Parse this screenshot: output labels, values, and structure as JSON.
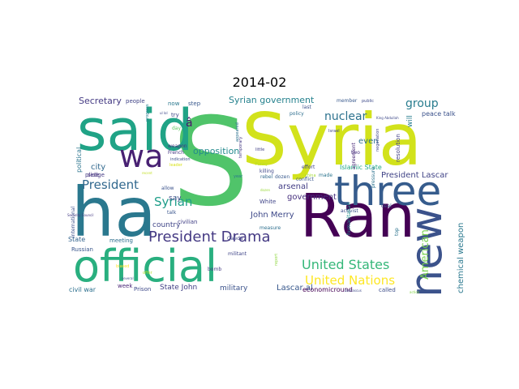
{
  "figure": {
    "title": "2014-02"
  },
  "cloud": {
    "words": [
      {
        "text": "S",
        "color": "#50c46a"
      },
      {
        "text": "Syria",
        "color": "#d2e21b"
      },
      {
        "text": "ha",
        "color": "#2a788e"
      },
      {
        "text": "Ran",
        "color": "#440154"
      },
      {
        "text": "said",
        "color": "#20a386"
      },
      {
        "text": "official",
        "color": "#29af7f"
      },
      {
        "text": "three",
        "color": "#365c8d"
      },
      {
        "text": "new",
        "color": "#3b528b"
      },
      {
        "text": "wa",
        "color": "#482173"
      },
      {
        "text": "President Drama",
        "color": "#443983"
      },
      {
        "text": "United States",
        "color": "#35b779"
      },
      {
        "text": "United Nations",
        "color": "#fde725"
      },
      {
        "text": "President",
        "color": "#31688e"
      },
      {
        "text": "Syrian",
        "color": "#1f9e89"
      },
      {
        "text": "American",
        "color": "#7ad151"
      },
      {
        "text": "group",
        "color": "#287c8e"
      },
      {
        "text": "nuclear",
        "color": "#2c728e"
      },
      {
        "text": "Syrian government",
        "color": "#26828e"
      },
      {
        "text": "Secretary",
        "color": "#443a83"
      },
      {
        "text": "opposition",
        "color": "#238a8d"
      },
      {
        "text": "President Lascar",
        "color": "#414487"
      },
      {
        "text": "chemical weapon",
        "color": "#2a788e"
      },
      {
        "text": "government",
        "color": "#46307e"
      },
      {
        "text": "John Merry",
        "color": "#3e4989"
      },
      {
        "text": "arsenal",
        "color": "#433e85"
      },
      {
        "text": "even",
        "color": "#2d708e"
      },
      {
        "text": "Lascar al",
        "color": "#38588c"
      },
      {
        "text": "State John",
        "color": "#424086"
      },
      {
        "text": "military",
        "color": "#3b528b"
      },
      {
        "text": "country",
        "color": "#404688"
      },
      {
        "text": "city",
        "color": "#31688e"
      },
      {
        "text": "say",
        "color": "#3e4a89"
      },
      {
        "text": "peace talk",
        "color": "#3b528b"
      },
      {
        "text": "â",
        "color": "#48186a"
      },
      {
        "text": "will",
        "color": "#287d8e"
      },
      {
        "text": "Islamic State",
        "color": "#22a884"
      },
      {
        "text": "resolution",
        "color": "#424086"
      },
      {
        "text": "economicround",
        "color": "#440154"
      },
      {
        "text": "called",
        "color": "#3d4d8a"
      },
      {
        "text": "civil war",
        "color": "#2d708e"
      },
      {
        "text": "week",
        "color": "#482475"
      },
      {
        "text": "Prison",
        "color": "#3e4989"
      },
      {
        "text": "State",
        "color": "#33638d"
      },
      {
        "text": "meeting",
        "color": "#2e6e8e"
      },
      {
        "text": "Russian",
        "color": "#39568c"
      },
      {
        "text": "people",
        "color": "#414487"
      },
      {
        "text": "step",
        "color": "#38588c"
      },
      {
        "text": "now",
        "color": "#2a788e"
      },
      {
        "text": "try",
        "color": "#3f4788"
      },
      {
        "text": "day",
        "color": "#5ec962"
      },
      {
        "text": "weapon",
        "color": "#46337f"
      },
      {
        "text": "French",
        "color": "#453581"
      },
      {
        "text": "political",
        "color": "#2b758e"
      },
      {
        "text": "pledge",
        "color": "#443983"
      },
      {
        "text": "side",
        "color": "#46327e"
      },
      {
        "text": "international",
        "color": "#3c508b"
      },
      {
        "text": "talk",
        "color": "#39558c"
      },
      {
        "text": "civilian",
        "color": "#424086"
      },
      {
        "text": "allow",
        "color": "#3b528b"
      },
      {
        "text": "White",
        "color": "#404588"
      },
      {
        "text": "measure",
        "color": "#2e6f8e"
      },
      {
        "text": "killing",
        "color": "#3f4889"
      },
      {
        "text": "rebel",
        "color": "#31688e"
      },
      {
        "text": "dozen",
        "color": "#38598c"
      },
      {
        "text": "effort",
        "color": "#404588"
      },
      {
        "text": "made",
        "color": "#2b748e"
      },
      {
        "text": "two",
        "color": "#46307e"
      },
      {
        "text": "agreement",
        "color": "#482878"
      },
      {
        "text": "pressure",
        "color": "#2c728e"
      },
      {
        "text": "deal",
        "color": "#3c4f8a"
      },
      {
        "text": "activist",
        "color": "#3d4e8a"
      },
      {
        "text": "conflict",
        "color": "#39568c"
      },
      {
        "text": "china",
        "color": "#a5db36"
      },
      {
        "text": "humanitarian",
        "color": "#21918c"
      },
      {
        "text": "top",
        "color": "#2c738e"
      },
      {
        "text": "Qaeda",
        "color": "#414487"
      },
      {
        "text": "militant",
        "color": "#404588"
      },
      {
        "text": "bomb",
        "color": "#443a83"
      },
      {
        "text": "member",
        "color": "#38598c"
      },
      {
        "text": "public",
        "color": "#3e4a89"
      },
      {
        "text": "last",
        "color": "#3b528b"
      },
      {
        "text": "policy",
        "color": "#2e6e8e"
      },
      {
        "text": "Israel",
        "color": "#3f4788"
      },
      {
        "text": "negotiation",
        "color": "#404688"
      },
      {
        "text": "appeared",
        "color": "#2c718e"
      },
      {
        "text": "temporary",
        "color": "#443983"
      },
      {
        "text": "little",
        "color": "#424086"
      },
      {
        "text": "year",
        "color": "#2a788e"
      },
      {
        "text": "Funny",
        "color": "#b8de29"
      },
      {
        "text": "leader",
        "color": "#d8e219"
      },
      {
        "text": "indication",
        "color": "#3d4e8a"
      },
      {
        "text": "progress",
        "color": "#277f8e"
      },
      {
        "text": "ul lol",
        "color": "#3f4889"
      },
      {
        "text": "King Abdullah",
        "color": "#3e4989"
      },
      {
        "text": "Security Council",
        "color": "#443a83"
      },
      {
        "text": "report",
        "color": "#90d743"
      },
      {
        "text": "offer",
        "color": "#b5de2b"
      },
      {
        "text": "biased",
        "color": "#fde725"
      },
      {
        "text": "Damascus",
        "color": "#3e4989"
      },
      {
        "text": "recent",
        "color": "#c2df23"
      },
      {
        "text": "several",
        "color": "#3b528b"
      },
      {
        "text": "dozen",
        "color": "#9bd93c"
      },
      {
        "text": "action",
        "color": "#86d549"
      }
    ]
  }
}
